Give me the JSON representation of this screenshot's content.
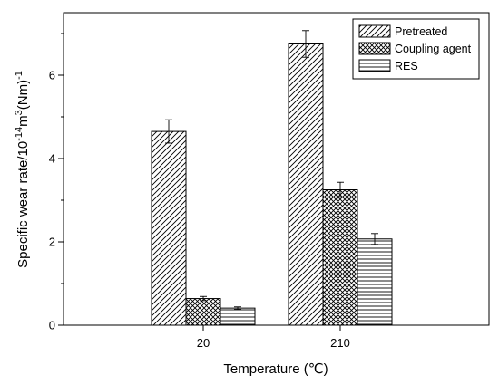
{
  "chart_data": {
    "type": "bar",
    "xlabel": "Temperature (℃)",
    "ylabel_parts": [
      "Specific wear rate/10",
      "-14",
      "m",
      "3",
      "(Nm)",
      "-1"
    ],
    "categories": [
      "20",
      "210"
    ],
    "ylim": [
      0,
      7.5
    ],
    "yticks": [
      0,
      2,
      4,
      6
    ],
    "grid": false,
    "legend_position": "top-right",
    "series": [
      {
        "name": "Pretreated",
        "values": [
          4.65,
          6.75
        ],
        "errors": [
          0.28,
          0.32
        ],
        "pattern": "diag"
      },
      {
        "name": "Coupling agent",
        "values": [
          0.64,
          3.25
        ],
        "errors": [
          0.05,
          0.18
        ],
        "pattern": "cross"
      },
      {
        "name": "RES",
        "values": [
          0.41,
          2.07
        ],
        "errors": [
          0.03,
          0.13
        ],
        "pattern": "horiz"
      }
    ]
  },
  "colors": {
    "axis": "#000000",
    "bar_stroke": "#000000",
    "hatch": "#000000",
    "background": "#ffffff"
  }
}
